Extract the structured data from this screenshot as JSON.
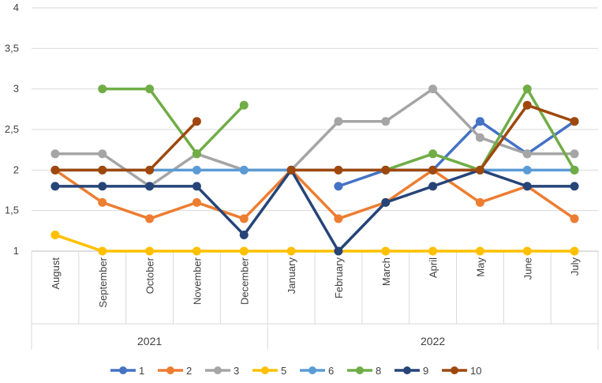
{
  "chart_data": {
    "type": "line",
    "title": "",
    "xlabel": "",
    "ylabel": "",
    "ylim": [
      1,
      4
    ],
    "yticks": [
      "1",
      "1,5",
      "2",
      "2,5",
      "3",
      "3,5",
      "4"
    ],
    "ytick_values": [
      1,
      1.5,
      2,
      2.5,
      3,
      3.5,
      4
    ],
    "grid": true,
    "legend_position": "bottom",
    "categories": [
      "August",
      "September",
      "October",
      "November",
      "December",
      "January",
      "February",
      "March",
      "April",
      "May",
      "June",
      "July"
    ],
    "groups": [
      {
        "label": "2021",
        "start": 0,
        "end": 4
      },
      {
        "label": "2022",
        "start": 5,
        "end": 11
      }
    ],
    "series": [
      {
        "name": "1",
        "color": "#4472C4",
        "values": [
          null,
          null,
          null,
          null,
          null,
          null,
          1.8,
          2.0,
          2.0,
          2.6,
          2.2,
          2.6
        ]
      },
      {
        "name": "2",
        "color": "#ED7D31",
        "values": [
          2.0,
          1.6,
          1.4,
          1.6,
          1.4,
          2.0,
          1.4,
          1.6,
          2.0,
          1.6,
          1.8,
          1.4
        ]
      },
      {
        "name": "3",
        "color": "#A5A5A5",
        "values": [
          2.2,
          2.2,
          1.8,
          2.2,
          2.0,
          2.0,
          2.6,
          2.6,
          3.0,
          2.4,
          2.2,
          2.2
        ]
      },
      {
        "name": "5",
        "color": "#FFC000",
        "values": [
          1.2,
          1.0,
          1.0,
          1.0,
          1.0,
          1.0,
          1.0,
          1.0,
          1.0,
          1.0,
          1.0,
          1.0
        ]
      },
      {
        "name": "6",
        "color": "#5B9BD5",
        "values": [
          2.0,
          2.0,
          2.0,
          2.0,
          2.0,
          2.0,
          2.0,
          2.0,
          2.0,
          2.0,
          2.0,
          2.0
        ]
      },
      {
        "name": "8",
        "color": "#70AD47",
        "values": [
          null,
          3.0,
          3.0,
          2.2,
          2.8,
          null,
          null,
          2.0,
          2.2,
          2.0,
          3.0,
          2.0
        ]
      },
      {
        "name": "9",
        "color": "#264478",
        "values": [
          1.8,
          1.8,
          1.8,
          1.8,
          1.2,
          2.0,
          1.0,
          1.6,
          1.8,
          2.0,
          1.8,
          1.8
        ]
      },
      {
        "name": "10",
        "color": "#9E480E",
        "values": [
          2.0,
          2.0,
          2.0,
          2.6,
          null,
          2.0,
          2.0,
          2.0,
          2.0,
          2.0,
          2.8,
          2.6
        ]
      }
    ]
  }
}
